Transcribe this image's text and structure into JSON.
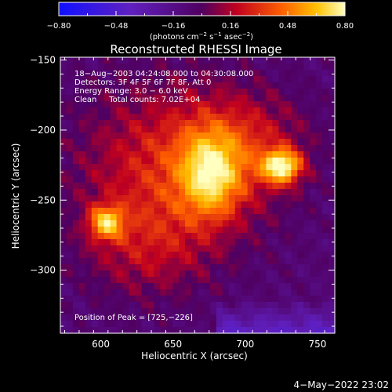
{
  "chart_data": {
    "type": "heatmap",
    "title": "Reconstructed RHESSI Image",
    "xlabel": "Heliocentric X (arcsec)",
    "ylabel": "Heliocentric Y (arcsec)",
    "xlim": [
      572,
      762
    ],
    "ylim": [
      -345,
      -148
    ],
    "x_ticks": [
      {
        "value": 600,
        "label": "600"
      },
      {
        "value": 650,
        "label": "650"
      },
      {
        "value": 700,
        "label": "700"
      },
      {
        "value": 750,
        "label": "750"
      }
    ],
    "y_ticks": [
      {
        "value": -150,
        "label": "−150"
      },
      {
        "value": -200,
        "label": "−200"
      },
      {
        "value": -250,
        "label": "−250"
      },
      {
        "value": -300,
        "label": "−300"
      }
    ],
    "colorbar": {
      "range": [
        -0.8,
        0.8
      ],
      "units_label": "(photons cm",
      "units_sup1": "−2",
      "units_mid": " s",
      "units_sup2": "−1",
      "units_mid2": " asec",
      "units_sup3": "−2",
      "units_end": ")",
      "tick_values": [
        -0.8,
        -0.48,
        -0.16,
        0.16,
        0.48,
        0.8
      ],
      "tick_labels": [
        "−0.80",
        "−0.48",
        "−0.16",
        "0.16",
        "0.48",
        "0.80"
      ]
    },
    "info_lines": [
      "18−Aug−2003 04:24:08.000 to 04:30:08.000",
      "Detectors: 3F 4F 5F 6F 7F 8F, Att 0",
      "Energy Range: 3.0 − 6.0 keV",
      "Clean     Total counts: 7.02E+04"
    ],
    "peak_text": "Position of Peak = [725,−226]",
    "sources": [
      {
        "x": 725,
        "y": -226,
        "peak": 0.8,
        "sx": 9,
        "sy": 8
      },
      {
        "x": 676,
        "y": -232,
        "peak": 0.55,
        "sx": 14,
        "sy": 20
      },
      {
        "x": 604,
        "y": -266,
        "peak": 0.6,
        "sx": 8,
        "sy": 8
      },
      {
        "x": 650,
        "y": -228,
        "peak": 0.34,
        "sx": 45,
        "sy": 42
      },
      {
        "x": 700,
        "y": -210,
        "peak": 0.22,
        "sx": 30,
        "sy": 25
      },
      {
        "x": 630,
        "y": -285,
        "peak": 0.18,
        "sx": 30,
        "sy": 25
      }
    ],
    "timestamp": "4−May−2022 23:02"
  }
}
